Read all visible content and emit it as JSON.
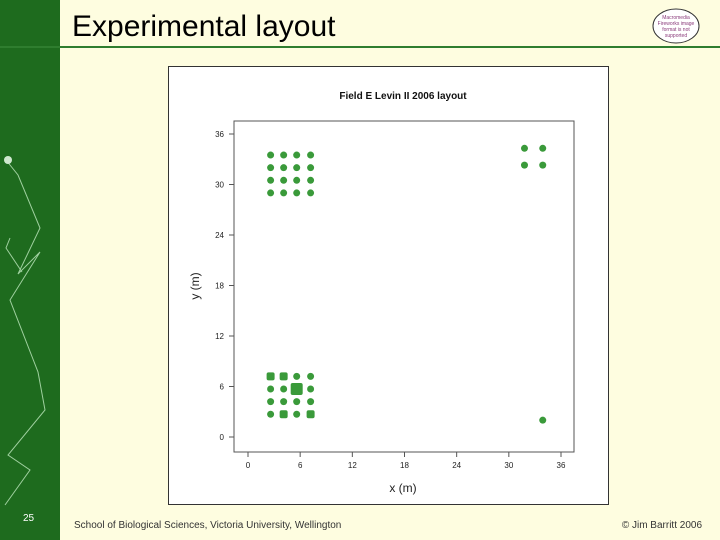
{
  "slide": {
    "title": "Experimental layout",
    "logo_text": "Macromedia Fireworks image format is not supported",
    "slide_number": "25",
    "footer_left": "School of Biological Sciences, Victoria University, Wellington",
    "footer_right": "© Jim Barritt 2006"
  },
  "colors": {
    "sidebar": "#1e6b1e",
    "background": "#fefde0",
    "points": "#3a9a3a",
    "title_rule": "#2f7d2f"
  },
  "chart_data": {
    "type": "scatter",
    "title": "Field E Levin II 2006 layout",
    "xlabel": "x (m)",
    "ylabel": "y (m)",
    "xlim": [
      0,
      36
    ],
    "ylim": [
      0,
      36
    ],
    "xticks": [
      0,
      6,
      12,
      18,
      24,
      30,
      36
    ],
    "yticks": [
      0,
      6,
      12,
      18,
      24,
      30,
      36
    ],
    "points": [
      {
        "x": 2.6,
        "y": 33.5
      },
      {
        "x": 4.1,
        "y": 33.5
      },
      {
        "x": 5.6,
        "y": 33.5
      },
      {
        "x": 7.2,
        "y": 33.5
      },
      {
        "x": 2.6,
        "y": 32.0
      },
      {
        "x": 4.1,
        "y": 32.0
      },
      {
        "x": 5.6,
        "y": 32.0
      },
      {
        "x": 7.2,
        "y": 32.0
      },
      {
        "x": 2.6,
        "y": 30.5
      },
      {
        "x": 4.1,
        "y": 30.5
      },
      {
        "x": 5.6,
        "y": 30.5
      },
      {
        "x": 7.2,
        "y": 30.5
      },
      {
        "x": 2.6,
        "y": 29.0
      },
      {
        "x": 4.1,
        "y": 29.0
      },
      {
        "x": 5.6,
        "y": 29.0
      },
      {
        "x": 7.2,
        "y": 29.0
      },
      {
        "x": 31.8,
        "y": 34.3
      },
      {
        "x": 33.9,
        "y": 34.3
      },
      {
        "x": 31.8,
        "y": 32.3
      },
      {
        "x": 33.9,
        "y": 32.3
      },
      {
        "x": 2.6,
        "y": 7.2,
        "marker": "square"
      },
      {
        "x": 4.1,
        "y": 7.2,
        "marker": "square"
      },
      {
        "x": 5.6,
        "y": 7.2
      },
      {
        "x": 7.2,
        "y": 7.2
      },
      {
        "x": 2.6,
        "y": 5.7
      },
      {
        "x": 4.1,
        "y": 5.7
      },
      {
        "x": 5.6,
        "y": 5.7,
        "marker": "square-large"
      },
      {
        "x": 7.2,
        "y": 5.7
      },
      {
        "x": 2.6,
        "y": 4.2
      },
      {
        "x": 4.1,
        "y": 4.2
      },
      {
        "x": 5.6,
        "y": 4.2
      },
      {
        "x": 7.2,
        "y": 4.2
      },
      {
        "x": 2.6,
        "y": 2.7
      },
      {
        "x": 4.1,
        "y": 2.7,
        "marker": "square"
      },
      {
        "x": 5.6,
        "y": 2.7
      },
      {
        "x": 7.2,
        "y": 2.7,
        "marker": "square"
      },
      {
        "x": 33.9,
        "y": 2.0
      }
    ],
    "grid": false
  }
}
